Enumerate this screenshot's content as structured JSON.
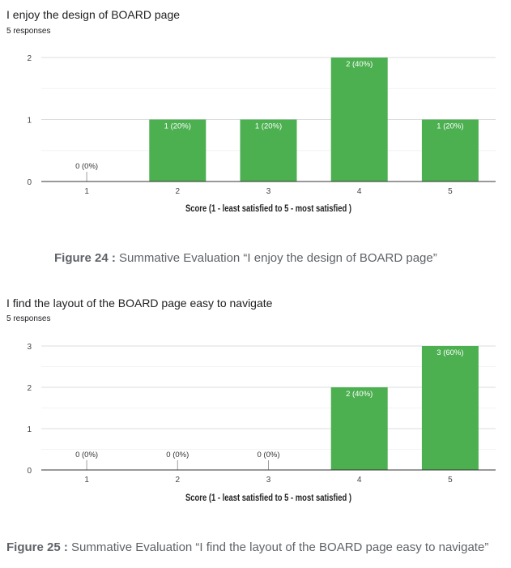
{
  "accent_color": "#4caf50",
  "charts": [
    {
      "question": "I enjoy the design of BOARD page",
      "responses": "5 responses",
      "caption_label": "Figure 24 :",
      "caption_text": " Summative Evaluation “I enjoy the design of BOARD page”"
    },
    {
      "question": "I find the layout of the BOARD page easy to navigate",
      "responses": "5 responses",
      "caption_label": "Figure 25 :",
      "caption_text": " Summative Evaluation “I find the layout of the BOARD page easy to navigate”"
    }
  ],
  "chart_data": [
    {
      "type": "bar",
      "title": "I enjoy the design of BOARD page",
      "categories": [
        "1",
        "2",
        "3",
        "4",
        "5"
      ],
      "values": [
        0,
        1,
        1,
        2,
        1
      ],
      "data_labels": [
        "0 (0%)",
        "1 (20%)",
        "1 (20%)",
        "2 (40%)",
        "1 (20%)"
      ],
      "xlabel": "Score (1 - least satisfied to 5 - most satisfied )",
      "ylabel": "",
      "ylim": [
        0,
        2
      ],
      "yticks": [
        "0",
        "1",
        "2"
      ],
      "grid": true,
      "color": "#4caf50"
    },
    {
      "type": "bar",
      "title": "I find the layout of the BOARD page easy to navigate",
      "categories": [
        "1",
        "2",
        "3",
        "4",
        "5"
      ],
      "values": [
        0,
        0,
        0,
        2,
        3
      ],
      "data_labels": [
        "0 (0%)",
        "0 (0%)",
        "0 (0%)",
        "2 (40%)",
        "3 (60%)"
      ],
      "xlabel": "Score (1 - least satisfied to 5 - most satisfied )",
      "ylabel": "",
      "ylim": [
        0,
        3
      ],
      "yticks": [
        "0",
        "1",
        "2",
        "3"
      ],
      "grid": true,
      "color": "#4caf50"
    }
  ]
}
